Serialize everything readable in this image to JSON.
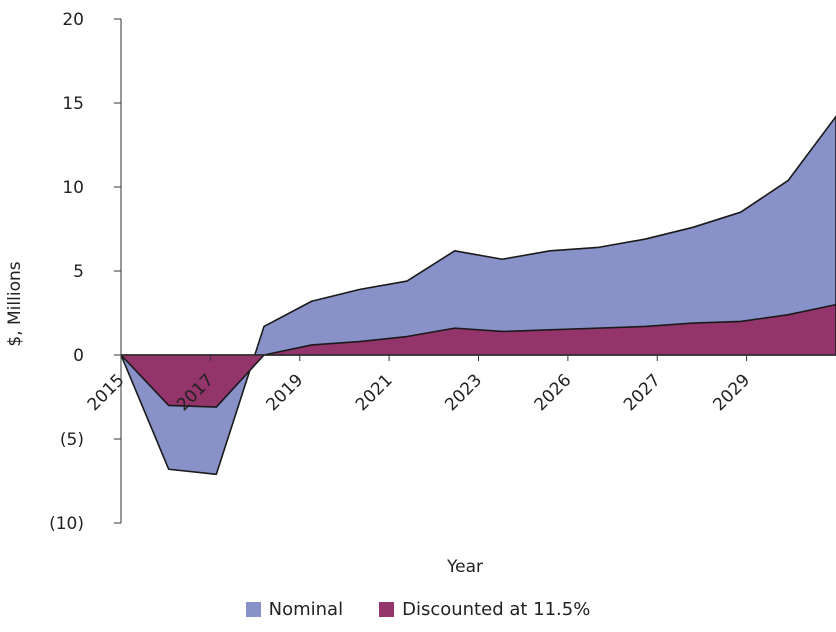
{
  "chart_data": {
    "type": "area",
    "xlabel": "Year",
    "ylabel": "$, Millions",
    "ylim": [
      -10,
      20
    ],
    "yticks": [
      {
        "value": 20,
        "label": "20"
      },
      {
        "value": 15,
        "label": "15"
      },
      {
        "value": 10,
        "label": "10"
      },
      {
        "value": 5,
        "label": "5"
      },
      {
        "value": 0,
        "label": "0"
      },
      {
        "value": -5,
        "label": "(5)"
      },
      {
        "value": -10,
        "label": "(10)"
      }
    ],
    "xticklabels": [
      "2015",
      "2017",
      "2019",
      "2021",
      "2023",
      "2026",
      "2027",
      "2029"
    ],
    "legend_position": "bottom",
    "grid": false,
    "series": [
      {
        "name": "Nominal",
        "color": "#8891c8",
        "values": [
          0,
          -6.8,
          -7.1,
          1.7,
          3.2,
          3.9,
          4.4,
          6.2,
          5.7,
          6.2,
          6.4,
          6.9,
          7.6,
          8.5,
          10.4,
          14.2
        ]
      },
      {
        "name": "Discounted at 11.5%",
        "color": "#93346a",
        "values": [
          0,
          -3.0,
          -3.1,
          0.0,
          0.6,
          0.8,
          1.1,
          1.6,
          1.4,
          1.5,
          1.6,
          1.7,
          1.9,
          2.0,
          2.4,
          3.0
        ]
      }
    ]
  }
}
